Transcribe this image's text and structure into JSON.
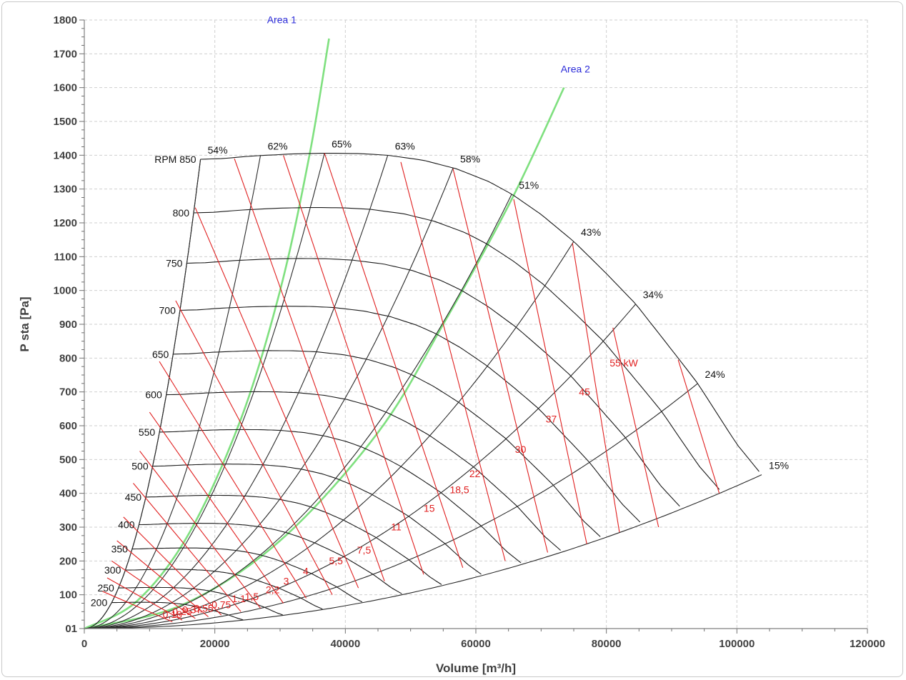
{
  "chart_data": {
    "type": "line",
    "title": "",
    "xlabel": "Volume [m³/h]",
    "ylabel": "P sta [Pa]",
    "xlim": [
      0,
      120000
    ],
    "ylim": [
      0,
      1800
    ],
    "x_ticks": [
      "0",
      "20000",
      "40000",
      "60000",
      "80000",
      "100000",
      "120000"
    ],
    "y_ticks": [
      "01",
      "100",
      "200",
      "300",
      "400",
      "500",
      "600",
      "700",
      "800",
      "900",
      "1000",
      "1100",
      "1200",
      "1300",
      "1400",
      "1500",
      "1600",
      "1700",
      "1800"
    ],
    "grid": true,
    "colors": {
      "speed_curve": "#1a1a1a",
      "efficiency_line": "#2a2a2a",
      "power_line": "#e02020",
      "area_line": "#7fe07f",
      "area_label": "#2b2bd9",
      "power_label": "#e02020",
      "grid": "#cfcfcf"
    },
    "speed_curves": [
      {
        "label": "RPM 850",
        "rpm": 850
      },
      {
        "label": "800",
        "rpm": 800
      },
      {
        "label": "750",
        "rpm": 750
      },
      {
        "label": "700",
        "rpm": 700
      },
      {
        "label": "650",
        "rpm": 650
      },
      {
        "label": "600",
        "rpm": 600
      },
      {
        "label": "550",
        "rpm": 550
      },
      {
        "label": "500",
        "rpm": 500
      },
      {
        "label": "450",
        "rpm": 450
      },
      {
        "label": "400",
        "rpm": 400
      },
      {
        "label": "350",
        "rpm": 350
      },
      {
        "label": "300",
        "rpm": 300
      },
      {
        "label": "250",
        "rpm": 250
      },
      {
        "label": "200",
        "rpm": 200
      }
    ],
    "rpm850_curve": [
      [
        17800,
        1388
      ],
      [
        21000,
        1390
      ],
      [
        26000,
        1398
      ],
      [
        32000,
        1404
      ],
      [
        37000,
        1406
      ],
      [
        42000,
        1405
      ],
      [
        46500,
        1400
      ],
      [
        52000,
        1385
      ],
      [
        57000,
        1360
      ],
      [
        62000,
        1322
      ],
      [
        65500,
        1285
      ],
      [
        70000,
        1225
      ],
      [
        75000,
        1145
      ],
      [
        80000,
        1050
      ],
      [
        84500,
        960
      ],
      [
        91000,
        800
      ],
      [
        94000,
        725
      ],
      [
        100000,
        545
      ],
      [
        103800,
        455
      ]
    ],
    "efficiency_lines": [
      {
        "label": "54%",
        "top_x": 17800,
        "top_y": 1388
      },
      {
        "label": "62%",
        "top_x": 27000,
        "top_y": 1400
      },
      {
        "label": "65%",
        "top_x": 36800,
        "top_y": 1406
      },
      {
        "label": "63%",
        "top_x": 46500,
        "top_y": 1400
      },
      {
        "label": "58%",
        "top_x": 56500,
        "top_y": 1362
      },
      {
        "label": "51%",
        "top_x": 65500,
        "top_y": 1285
      },
      {
        "label": "43%",
        "top_x": 75000,
        "top_y": 1145
      },
      {
        "label": "34%",
        "top_x": 84500,
        "top_y": 960
      },
      {
        "label": "24%",
        "top_x": 94000,
        "top_y": 725
      },
      {
        "label": "15%",
        "top_x": 103800,
        "top_y": 455
      }
    ],
    "power_lines": [
      {
        "label": "55 kW",
        "start": [
          91000,
          795
        ],
        "end": [
          97300,
          400
        ],
        "label_pos": [
          80500,
          775
        ]
      },
      {
        "label": "45",
        "start": [
          81000,
          890
        ],
        "end": [
          88000,
          300
        ],
        "label_pos": [
          75800,
          690
        ]
      },
      {
        "label": "37",
        "start": [
          74800,
          1140
        ],
        "end": [
          82000,
          285
        ],
        "label_pos": [
          70700,
          610
        ]
      },
      {
        "label": "30",
        "start": [
          65800,
          1270
        ],
        "end": [
          77000,
          250
        ],
        "label_pos": [
          66000,
          520
        ]
      },
      {
        "label": "22",
        "start": [
          56500,
          1360
        ],
        "end": [
          71000,
          225
        ],
        "label_pos": [
          59000,
          448
        ]
      },
      {
        "label": "18,5",
        "start": [
          48500,
          1380
        ],
        "end": [
          64500,
          200
        ],
        "label_pos": [
          56000,
          400
        ]
      },
      {
        "label": "15",
        "start": [
          36800,
          1406
        ],
        "end": [
          58000,
          180
        ],
        "label_pos": [
          52000,
          345
        ]
      },
      {
        "label": "11",
        "start": [
          30500,
          1400
        ],
        "end": [
          52000,
          160
        ],
        "label_pos": [
          47000,
          290
        ]
      },
      {
        "label": "7,5",
        "start": [
          23000,
          1390
        ],
        "end": [
          46000,
          140
        ],
        "label_pos": [
          41800,
          222
        ]
      },
      {
        "label": "5,5",
        "start": [
          17000,
          1245
        ],
        "end": [
          42000,
          120
        ],
        "label_pos": [
          37500,
          190
        ]
      },
      {
        "label": "4",
        "start": [
          14000,
          970
        ],
        "end": [
          38000,
          100
        ],
        "label_pos": [
          33500,
          160
        ]
      },
      {
        "label": "3",
        "start": [
          11500,
          790
        ],
        "end": [
          34000,
          90
        ],
        "label_pos": [
          30500,
          130
        ]
      },
      {
        "label": "2,2",
        "start": [
          10000,
          640
        ],
        "end": [
          30500,
          75
        ],
        "label_pos": [
          27800,
          105
        ]
      },
      {
        "label": "1,5",
        "start": [
          8500,
          525
        ],
        "end": [
          27000,
          60
        ],
        "label_pos": [
          24600,
          85
        ]
      },
      {
        "label": "1.1",
        "start": [
          7500,
          430
        ],
        "end": [
          24000,
          50
        ],
        "label_pos": [
          22600,
          78
        ]
      },
      {
        "label": "0,75",
        "start": [
          6000,
          330
        ],
        "end": [
          21000,
          40
        ],
        "label_pos": [
          19500,
          60
        ]
      },
      {
        "label": "0,55",
        "start": [
          5000,
          260
        ],
        "end": [
          19000,
          35
        ],
        "label_pos": [
          16800,
          50
        ]
      },
      {
        "label": "0,37",
        "start": [
          4200,
          200
        ],
        "end": [
          17000,
          30
        ],
        "label_pos": [
          15000,
          45
        ]
      },
      {
        "label": "0,25",
        "start": [
          3500,
          150
        ],
        "end": [
          15000,
          25
        ],
        "label_pos": [
          13500,
          40
        ]
      },
      {
        "label": "0,18",
        "start": [
          2800,
          110
        ],
        "end": [
          13500,
          20
        ],
        "label_pos": [
          12000,
          32
        ]
      }
    ],
    "areas": [
      {
        "label": "Area 1",
        "label_pos": [
          28000,
          1790
        ],
        "points": [
          [
            0,
            0
          ],
          [
            8000,
            80
          ],
          [
            16000,
            280
          ],
          [
            24000,
            620
          ],
          [
            30000,
            1000
          ],
          [
            34500,
            1400
          ],
          [
            37500,
            1745
          ]
        ]
      },
      {
        "label": "Area 2",
        "label_pos": [
          73000,
          1645
        ],
        "points": [
          [
            0,
            0
          ],
          [
            15000,
            70
          ],
          [
            30000,
            260
          ],
          [
            45000,
            580
          ],
          [
            55000,
            900
          ],
          [
            65500,
            1270
          ],
          [
            73500,
            1600
          ]
        ]
      }
    ]
  }
}
